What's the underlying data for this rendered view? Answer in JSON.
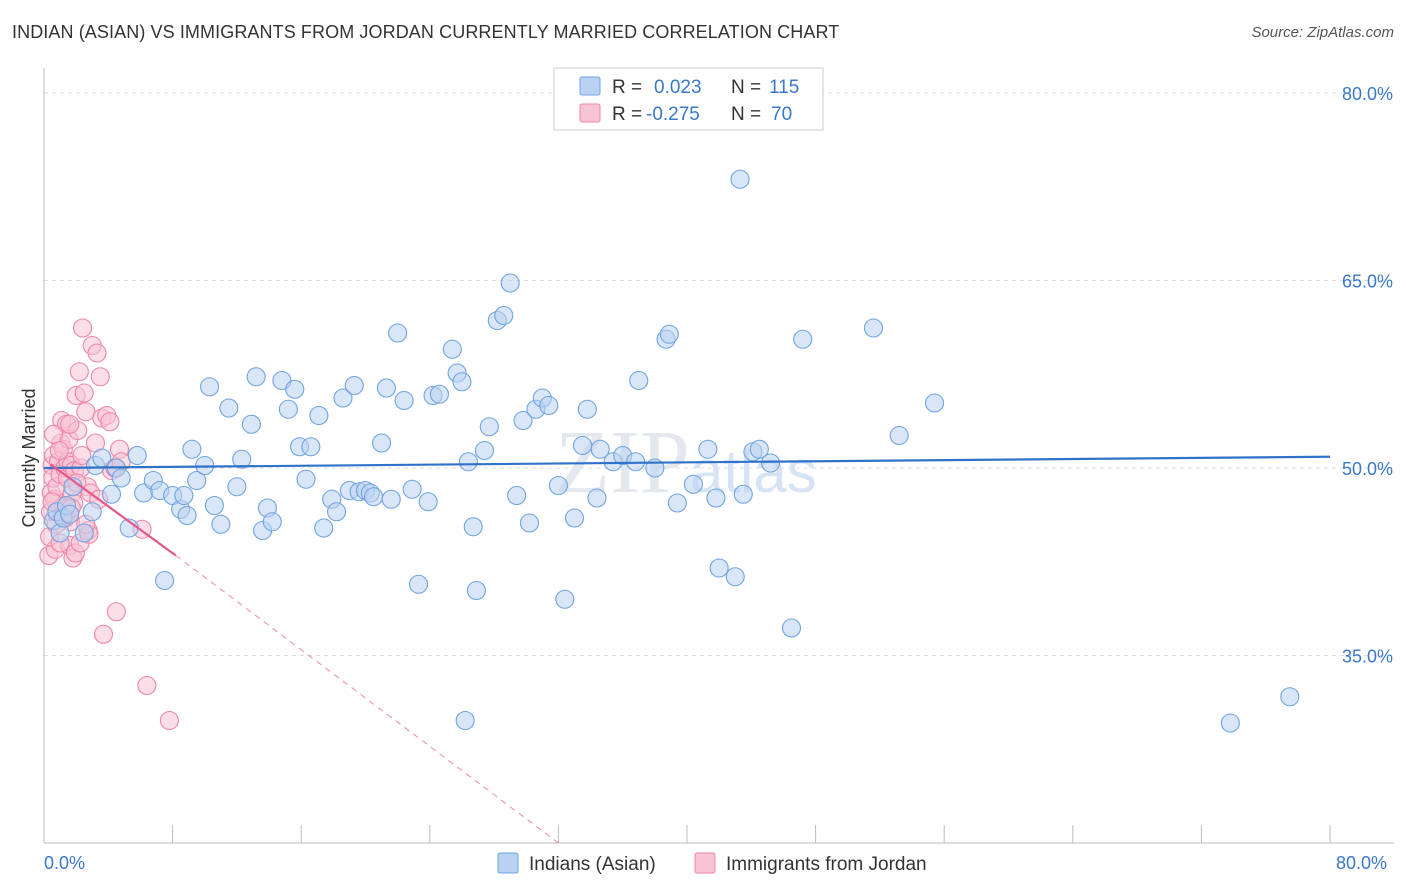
{
  "header": {
    "title": "INDIAN (ASIAN) VS IMMIGRANTS FROM JORDAN CURRENTLY MARRIED CORRELATION CHART",
    "source": "Source: ZipAtlas.com"
  },
  "watermark": "ZIPatlas",
  "colors": {
    "blue": "#6fa3e0",
    "blue_fill": "#b9d2f1",
    "blue_line": "#2f73c9",
    "pink": "#ee86a8",
    "pink_fill": "#f8c3d4",
    "pink_line": "#e8578a",
    "grid": "#dddddd",
    "tick_text": "#3a78c9"
  },
  "legend": {
    "rows": [
      {
        "r_label": "R =",
        "r_value": "0.023",
        "n_label": "N =",
        "n_value": "115"
      },
      {
        "r_label": "R =",
        "r_value": "-0.275",
        "n_label": "N =",
        "n_value": "70"
      }
    ]
  },
  "chart_data": {
    "type": "scatter",
    "title": "INDIAN (ASIAN) VS IMMIGRANTS FROM JORDAN CURRENTLY MARRIED CORRELATION CHART",
    "xlabel": "",
    "ylabel": "Currently Married",
    "xlim": [
      0,
      80
    ],
    "ylim": [
      20,
      82
    ],
    "x_tick_labels": [
      "0.0%",
      "80.0%"
    ],
    "y_ticks": [
      35,
      50,
      65,
      80
    ],
    "y_tick_labels": [
      "35.0%",
      "50.0%",
      "65.0%",
      "80.0%"
    ],
    "grid": true,
    "legend_position": "top-center",
    "series": [
      {
        "name": "Indians (Asian)",
        "color": "#6fa3e0",
        "trend": {
          "x": [
            0,
            80
          ],
          "y": [
            50.0,
            50.9
          ]
        },
        "points": [
          [
            0.6,
            45.8
          ],
          [
            0.8,
            46.5
          ],
          [
            1.0,
            44.8
          ],
          [
            1.2,
            46.0
          ],
          [
            1.4,
            47.0
          ],
          [
            1.6,
            46.3
          ],
          [
            1.8,
            48.5
          ],
          [
            2.5,
            44.8
          ],
          [
            3.0,
            46.5
          ],
          [
            3.2,
            50.2
          ],
          [
            3.6,
            50.8
          ],
          [
            4.2,
            47.9
          ],
          [
            4.5,
            50.0
          ],
          [
            4.8,
            49.2
          ],
          [
            5.3,
            45.2
          ],
          [
            5.8,
            51.0
          ],
          [
            6.2,
            48.0
          ],
          [
            6.8,
            49.0
          ],
          [
            7.2,
            48.2
          ],
          [
            7.5,
            41.0
          ],
          [
            8.0,
            47.8
          ],
          [
            8.5,
            46.7
          ],
          [
            8.7,
            47.8
          ],
          [
            8.9,
            46.2
          ],
          [
            9.2,
            51.5
          ],
          [
            9.5,
            49.0
          ],
          [
            10.0,
            50.2
          ],
          [
            10.3,
            56.5
          ],
          [
            10.6,
            47.0
          ],
          [
            11.0,
            45.5
          ],
          [
            11.5,
            54.8
          ],
          [
            12.0,
            48.5
          ],
          [
            12.3,
            50.7
          ],
          [
            12.9,
            53.5
          ],
          [
            13.2,
            57.3
          ],
          [
            13.6,
            45.0
          ],
          [
            13.9,
            46.8
          ],
          [
            14.2,
            45.7
          ],
          [
            14.8,
            57.0
          ],
          [
            15.2,
            54.7
          ],
          [
            15.6,
            56.3
          ],
          [
            15.9,
            51.7
          ],
          [
            16.3,
            49.1
          ],
          [
            16.6,
            51.7
          ],
          [
            17.1,
            54.2
          ],
          [
            17.4,
            45.2
          ],
          [
            17.9,
            47.5
          ],
          [
            18.2,
            46.5
          ],
          [
            18.6,
            55.6
          ],
          [
            19.0,
            48.2
          ],
          [
            19.3,
            56.6
          ],
          [
            19.6,
            48.1
          ],
          [
            20.0,
            48.2
          ],
          [
            20.3,
            48.0
          ],
          [
            20.5,
            47.7
          ],
          [
            21.0,
            52.0
          ],
          [
            21.3,
            56.4
          ],
          [
            21.6,
            47.5
          ],
          [
            22.0,
            60.8
          ],
          [
            22.4,
            55.4
          ],
          [
            22.9,
            48.3
          ],
          [
            23.3,
            40.7
          ],
          [
            23.9,
            47.3
          ],
          [
            24.2,
            55.8
          ],
          [
            24.6,
            55.9
          ],
          [
            25.4,
            59.5
          ],
          [
            25.7,
            57.6
          ],
          [
            26.0,
            56.9
          ],
          [
            26.4,
            50.5
          ],
          [
            26.7,
            45.3
          ],
          [
            26.9,
            40.2
          ],
          [
            27.4,
            51.4
          ],
          [
            27.7,
            53.3
          ],
          [
            28.2,
            61.8
          ],
          [
            28.6,
            62.2
          ],
          [
            29.0,
            64.8
          ],
          [
            29.4,
            47.8
          ],
          [
            29.8,
            53.8
          ],
          [
            30.2,
            45.6
          ],
          [
            30.6,
            54.7
          ],
          [
            31.0,
            55.6
          ],
          [
            31.4,
            55.0
          ],
          [
            32.0,
            48.6
          ],
          [
            32.4,
            39.5
          ],
          [
            33.0,
            46.0
          ],
          [
            33.5,
            51.8
          ],
          [
            33.8,
            54.7
          ],
          [
            34.4,
            47.6
          ],
          [
            34.6,
            51.5
          ],
          [
            35.4,
            50.5
          ],
          [
            36.0,
            51.0
          ],
          [
            36.8,
            50.5
          ],
          [
            37.0,
            57.0
          ],
          [
            38.0,
            50.0
          ],
          [
            38.7,
            60.3
          ],
          [
            38.9,
            60.7
          ],
          [
            39.4,
            47.2
          ],
          [
            40.4,
            48.7
          ],
          [
            41.3,
            51.5
          ],
          [
            41.8,
            47.6
          ],
          [
            42.0,
            42.0
          ],
          [
            43.0,
            41.3
          ],
          [
            43.3,
            73.1
          ],
          [
            43.5,
            47.9
          ],
          [
            44.1,
            51.3
          ],
          [
            44.5,
            51.5
          ],
          [
            45.2,
            50.4
          ],
          [
            46.5,
            37.2
          ],
          [
            47.2,
            60.3
          ],
          [
            51.6,
            61.2
          ],
          [
            53.2,
            52.6
          ],
          [
            55.4,
            55.2
          ],
          [
            73.8,
            29.6
          ],
          [
            77.5,
            31.7
          ],
          [
            26.2,
            29.8
          ]
        ]
      },
      {
        "name": "Immigrants from Jordan",
        "color": "#ee86a8",
        "trend": {
          "x": [
            0.4,
            8.2
          ],
          "y": [
            50.3,
            43.0
          ]
        },
        "trend_extended": {
          "x": [
            8.2,
            32.0
          ],
          "y": [
            43.0,
            20.0
          ]
        },
        "points": [
          [
            0.3,
            43.0
          ],
          [
            0.4,
            46.5
          ],
          [
            0.45,
            48.0
          ],
          [
            0.5,
            50.2
          ],
          [
            0.55,
            49.2
          ],
          [
            0.6,
            51.0
          ],
          [
            0.65,
            47.5
          ],
          [
            0.7,
            43.5
          ],
          [
            0.8,
            48.5
          ],
          [
            0.9,
            50.5
          ],
          [
            1.0,
            49.5
          ],
          [
            1.05,
            52.0
          ],
          [
            1.1,
            53.8
          ],
          [
            1.2,
            51.5
          ],
          [
            1.25,
            47.0
          ],
          [
            1.3,
            50.0
          ],
          [
            1.35,
            46.0
          ],
          [
            1.4,
            53.5
          ],
          [
            1.45,
            49.2
          ],
          [
            1.5,
            50.5
          ],
          [
            1.55,
            52.3
          ],
          [
            1.6,
            43.8
          ],
          [
            1.65,
            45.7
          ],
          [
            1.7,
            50.2
          ],
          [
            1.75,
            48.0
          ],
          [
            1.8,
            42.8
          ],
          [
            1.85,
            47.2
          ],
          [
            1.9,
            49.8
          ],
          [
            1.95,
            43.2
          ],
          [
            2.0,
            55.8
          ],
          [
            2.1,
            53.0
          ],
          [
            2.2,
            57.7
          ],
          [
            2.25,
            44.0
          ],
          [
            2.3,
            50.0
          ],
          [
            2.4,
            61.2
          ],
          [
            2.5,
            56.0
          ],
          [
            2.6,
            54.5
          ],
          [
            2.7,
            48.5
          ],
          [
            2.75,
            45.0
          ],
          [
            2.8,
            44.7
          ],
          [
            3.0,
            59.8
          ],
          [
            3.2,
            52.0
          ],
          [
            3.3,
            59.2
          ],
          [
            3.5,
            57.3
          ],
          [
            3.6,
            54.0
          ],
          [
            3.7,
            36.7
          ],
          [
            3.9,
            54.2
          ],
          [
            4.2,
            49.8
          ],
          [
            4.4,
            50.0
          ],
          [
            4.5,
            38.5
          ],
          [
            4.7,
            51.5
          ],
          [
            4.8,
            50.5
          ],
          [
            6.1,
            45.1
          ],
          [
            6.4,
            32.6
          ],
          [
            7.8,
            29.8
          ],
          [
            0.35,
            44.5
          ],
          [
            0.5,
            47.3
          ],
          [
            0.75,
            45.5
          ],
          [
            0.95,
            51.4
          ],
          [
            1.15,
            46.2
          ],
          [
            1.6,
            53.5
          ],
          [
            2.05,
            48.8
          ],
          [
            2.35,
            51.0
          ],
          [
            2.9,
            48.0
          ],
          [
            3.4,
            47.5
          ],
          [
            4.1,
            53.7
          ],
          [
            0.6,
            52.7
          ],
          [
            1.0,
            44.0
          ],
          [
            1.7,
            46.8
          ],
          [
            2.6,
            45.5
          ]
        ]
      }
    ]
  }
}
